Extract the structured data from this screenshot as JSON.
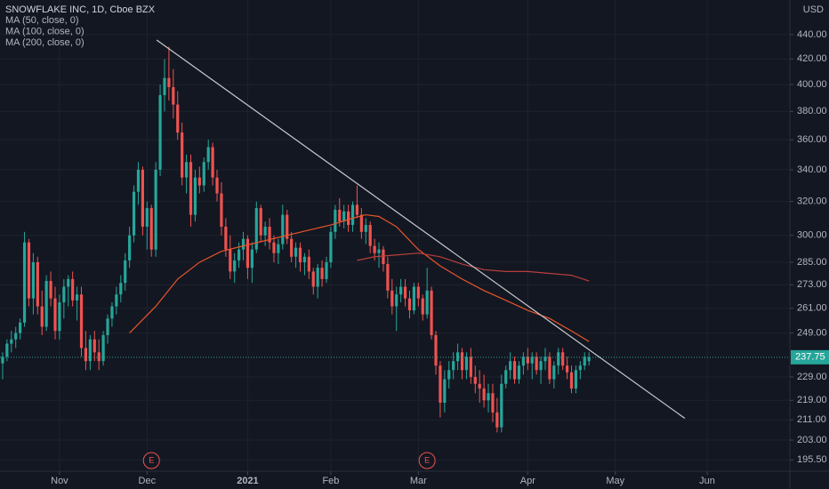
{
  "chart_data": {
    "type": "candlestick",
    "title": "SNOWFLAKE INC, 1D, Cboe BZX",
    "currency": "USD",
    "log_scale": true,
    "grid": true,
    "up_color": "#26a69a",
    "down_color": "#ef5350",
    "ylim": [
      191.3,
      470
    ],
    "yticks": [
      {
        "value": 440,
        "label": "440.00"
      },
      {
        "value": 420,
        "label": "420.00"
      },
      {
        "value": 400,
        "label": "400.00"
      },
      {
        "value": 380,
        "label": "380.00"
      },
      {
        "value": 360,
        "label": "360.00"
      },
      {
        "value": 340,
        "label": "340.00"
      },
      {
        "value": 320,
        "label": "320.00"
      },
      {
        "value": 300,
        "label": "300.00"
      },
      {
        "value": 285,
        "label": "285.00"
      },
      {
        "value": 273,
        "label": "273.00"
      },
      {
        "value": 261,
        "label": "261.00"
      },
      {
        "value": 249,
        "label": "249.00"
      },
      {
        "value": 229,
        "label": "229.00"
      },
      {
        "value": 219,
        "label": "219.00"
      },
      {
        "value": 211,
        "label": "211.00"
      },
      {
        "value": 203,
        "label": "203.00"
      },
      {
        "value": 195.5,
        "label": "195.50"
      }
    ],
    "xlim": [
      -0.6,
      179.9
    ],
    "xticks": [
      {
        "value": 13,
        "label": "Nov"
      },
      {
        "value": 33,
        "label": "Dec"
      },
      {
        "value": 56,
        "label": "2021"
      },
      {
        "value": 75,
        "label": "Feb"
      },
      {
        "value": 95,
        "label": "Mar"
      },
      {
        "value": 120,
        "label": "Apr"
      },
      {
        "value": 140,
        "label": "May"
      },
      {
        "value": 161,
        "label": "Jun"
      }
    ],
    "last_price": 237.75,
    "ohlc": [
      [
        235,
        240,
        228,
        238
      ],
      [
        238,
        246,
        236,
        244
      ],
      [
        244,
        250,
        240,
        246
      ],
      [
        246,
        252,
        242,
        249
      ],
      [
        249,
        256,
        246,
        254
      ],
      [
        254,
        302,
        252,
        296
      ],
      [
        296,
        298,
        262,
        266
      ],
      [
        266,
        290,
        258,
        285
      ],
      [
        285,
        288,
        258,
        262
      ],
      [
        262,
        270,
        248,
        252
      ],
      [
        252,
        278,
        250,
        275
      ],
      [
        275,
        280,
        262,
        266
      ],
      [
        266,
        272,
        246,
        250
      ],
      [
        250,
        268,
        246,
        264
      ],
      [
        264,
        276,
        256,
        272
      ],
      [
        272,
        278,
        262,
        276
      ],
      [
        276,
        280,
        262,
        265
      ],
      [
        265,
        272,
        255,
        268
      ],
      [
        268,
        272,
        238,
        242
      ],
      [
        242,
        250,
        232,
        236
      ],
      [
        236,
        248,
        232,
        246
      ],
      [
        246,
        250,
        236,
        240
      ],
      [
        240,
        246,
        232,
        236
      ],
      [
        236,
        250,
        234,
        248
      ],
      [
        248,
        258,
        244,
        256
      ],
      [
        256,
        264,
        252,
        262
      ],
      [
        262,
        272,
        258,
        268
      ],
      [
        268,
        278,
        264,
        274
      ],
      [
        274,
        290,
        270,
        286
      ],
      [
        286,
        305,
        282,
        300
      ],
      [
        300,
        330,
        296,
        326
      ],
      [
        326,
        345,
        318,
        340
      ],
      [
        340,
        342,
        300,
        305
      ],
      [
        305,
        320,
        292,
        316
      ],
      [
        316,
        318,
        288,
        292
      ],
      [
        292,
        345,
        288,
        340
      ],
      [
        340,
        400,
        336,
        392
      ],
      [
        392,
        420,
        380,
        405
      ],
      [
        405,
        430,
        388,
        398
      ],
      [
        398,
        412,
        375,
        385
      ],
      [
        385,
        395,
        360,
        365
      ],
      [
        365,
        372,
        330,
        335
      ],
      [
        335,
        350,
        325,
        345
      ],
      [
        345,
        350,
        305,
        312
      ],
      [
        312,
        340,
        308,
        335
      ],
      [
        335,
        342,
        325,
        330
      ],
      [
        330,
        348,
        326,
        345
      ],
      [
        345,
        360,
        340,
        355
      ],
      [
        355,
        358,
        330,
        335
      ],
      [
        335,
        340,
        320,
        325
      ],
      [
        325,
        332,
        300,
        305
      ],
      [
        305,
        310,
        288,
        292
      ],
      [
        292,
        300,
        276,
        280
      ],
      [
        280,
        290,
        274,
        286
      ],
      [
        286,
        296,
        282,
        292
      ],
      [
        292,
        302,
        286,
        298
      ],
      [
        298,
        300,
        276,
        282
      ],
      [
        282,
        296,
        274,
        292
      ],
      [
        292,
        320,
        290,
        316
      ],
      [
        316,
        318,
        296,
        300
      ],
      [
        300,
        308,
        294,
        305
      ],
      [
        305,
        310,
        292,
        296
      ],
      [
        296,
        300,
        285,
        290
      ],
      [
        290,
        298,
        284,
        295
      ],
      [
        295,
        318,
        292,
        312
      ],
      [
        312,
        315,
        295,
        298
      ],
      [
        298,
        302,
        285,
        288
      ],
      [
        288,
        296,
        282,
        293
      ],
      [
        293,
        296,
        280,
        285
      ],
      [
        285,
        290,
        278,
        288
      ],
      [
        288,
        292,
        276,
        280
      ],
      [
        280,
        282,
        268,
        272
      ],
      [
        272,
        284,
        266,
        282
      ],
      [
        282,
        286,
        272,
        276
      ],
      [
        276,
        288,
        274,
        285
      ],
      [
        285,
        305,
        282,
        302
      ],
      [
        302,
        318,
        298,
        315
      ],
      [
        315,
        322,
        305,
        308
      ],
      [
        308,
        318,
        304,
        314
      ],
      [
        314,
        318,
        302,
        306
      ],
      [
        306,
        320,
        302,
        318
      ],
      [
        318,
        330,
        310,
        312
      ],
      [
        312,
        316,
        298,
        302
      ],
      [
        302,
        310,
        295,
        306
      ],
      [
        306,
        308,
        290,
        294
      ],
      [
        294,
        298,
        286,
        290
      ],
      [
        290,
        296,
        282,
        292
      ],
      [
        292,
        294,
        280,
        284
      ],
      [
        284,
        288,
        266,
        270
      ],
      [
        270,
        276,
        258,
        262
      ],
      [
        262,
        272,
        250,
        268
      ],
      [
        268,
        276,
        264,
        272
      ],
      [
        272,
        276,
        262,
        266
      ],
      [
        266,
        270,
        256,
        260
      ],
      [
        260,
        274,
        258,
        272
      ],
      [
        272,
        274,
        262,
        266
      ],
      [
        266,
        268,
        255,
        258
      ],
      [
        258,
        282,
        256,
        270
      ],
      [
        270,
        272,
        246,
        248
      ],
      [
        248,
        250,
        230,
        234
      ],
      [
        234,
        236,
        212,
        218
      ],
      [
        218,
        232,
        214,
        228
      ],
      [
        228,
        236,
        224,
        232
      ],
      [
        232,
        240,
        228,
        236
      ],
      [
        236,
        244,
        232,
        240
      ],
      [
        240,
        242,
        228,
        232
      ],
      [
        232,
        240,
        228,
        238
      ],
      [
        238,
        242,
        226,
        229
      ],
      [
        229,
        234,
        222,
        226
      ],
      [
        226,
        232,
        218,
        224
      ],
      [
        224,
        230,
        216,
        219
      ],
      [
        219,
        226,
        214,
        222
      ],
      [
        222,
        226,
        210,
        214
      ],
      [
        214,
        220,
        206,
        208
      ],
      [
        208,
        230,
        206,
        226
      ],
      [
        226,
        234,
        224,
        232
      ],
      [
        232,
        240,
        228,
        236
      ],
      [
        236,
        238,
        226,
        228
      ],
      [
        228,
        236,
        226,
        234
      ],
      [
        234,
        240,
        230,
        238
      ],
      [
        238,
        242,
        232,
        235
      ],
      [
        235,
        240,
        228,
        238
      ],
      [
        238,
        240,
        230,
        232
      ],
      [
        232,
        238,
        226,
        236
      ],
      [
        236,
        242,
        232,
        238
      ],
      [
        238,
        240,
        226,
        228
      ],
      [
        228,
        236,
        224,
        234
      ],
      [
        234,
        242,
        230,
        240
      ],
      [
        240,
        242,
        232,
        234
      ],
      [
        234,
        238,
        228,
        231
      ],
      [
        231,
        234,
        222,
        224
      ],
      [
        224,
        234,
        222,
        232
      ],
      [
        232,
        236,
        228,
        234
      ],
      [
        234,
        240,
        232,
        238
      ],
      [
        236,
        240,
        234,
        237.75
      ]
    ],
    "series": [
      {
        "name": "MA (50, close, 0)",
        "color": "#e8552b",
        "x": [
          29,
          35,
          40,
          45,
          50,
          55,
          60,
          65,
          70,
          75,
          80,
          83,
          86,
          90,
          95,
          100,
          105,
          110,
          115,
          120,
          125,
          130,
          134
        ],
        "values": [
          249,
          262,
          276,
          285,
          291,
          294,
          297,
          300,
          303,
          306,
          310,
          312,
          311,
          305,
          292,
          283,
          276,
          270,
          265,
          260,
          256,
          250,
          245
        ]
      },
      {
        "name": "MA (100, close, 0)",
        "color": "#b8403c",
        "x": [
          81,
          85,
          90,
          95,
          100,
          105,
          110,
          115,
          120,
          125,
          130,
          134
        ],
        "values": [
          286,
          288,
          289,
          290,
          288,
          284,
          281,
          280,
          280,
          279,
          278,
          275
        ]
      },
      {
        "name": "MA (200, close, 0)",
        "x": [],
        "values": []
      }
    ],
    "trendline": {
      "x": [
        35.2,
        155.9
      ],
      "values": [
        435.5,
        211.6
      ]
    },
    "earnings": [
      {
        "x": 34,
        "label": "E"
      },
      {
        "x": 97,
        "label": "E"
      }
    ]
  }
}
